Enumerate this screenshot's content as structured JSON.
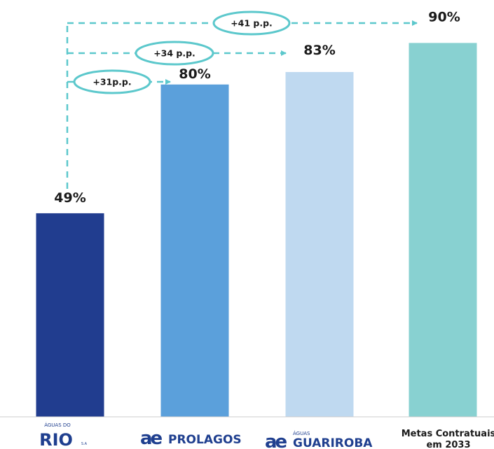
{
  "chart_data": {
    "type": "bar",
    "categories": [
      "ÁGUAS DO RIO",
      "PROLAGOS",
      "GUARIROBA",
      "Metas Contratuais em 2033"
    ],
    "values": [
      49,
      80,
      83,
      90
    ],
    "value_labels": [
      "49%",
      "80%",
      "83%",
      "90%"
    ],
    "ylim": [
      0,
      100
    ],
    "grid": false,
    "colors": [
      "#213d8f",
      "#5ba0db",
      "#bfd9f0",
      "#88d1d1"
    ],
    "logos": {
      "aguas_do_rio": {
        "small": "ÁGUAS DO",
        "main": "RIO",
        "suffix": "S.A"
      },
      "prolagos": {
        "mark": "ae",
        "name": "PROLAGOS"
      },
      "guariroba": {
        "mark": "ae",
        "small": "ÁGUAS",
        "name": "GUARIROBA"
      }
    },
    "last_label_lines": [
      "Metas Contratuais",
      "em 2033"
    ],
    "differences": [
      {
        "label": "+31p.p.",
        "to_index": 1
      },
      {
        "label": "+34 p.p.",
        "to_index": 2
      },
      {
        "label": "+41 p.p.",
        "to_index": 3
      }
    ],
    "accent_color": "#5cc8cc"
  }
}
